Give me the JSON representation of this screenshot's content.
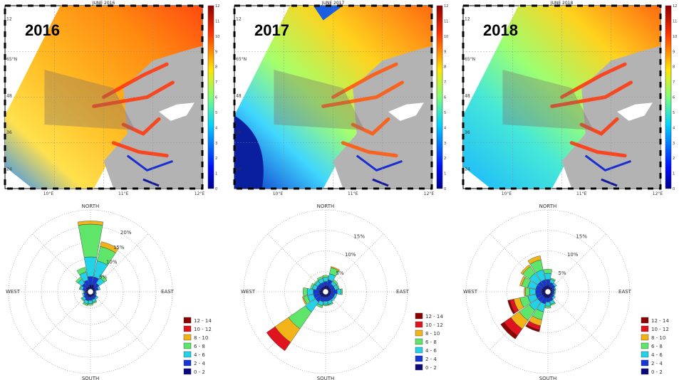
{
  "figure": {
    "maps": [
      {
        "title": "JUNE 2016",
        "year": "2016",
        "lon_ticks": [
          "10°E",
          "11°E",
          "12°E"
        ],
        "cbar_ticks": [
          "0",
          "1",
          "2",
          "3",
          "4",
          "5",
          "6",
          "7",
          "8",
          "9",
          "10",
          "11",
          "12"
        ]
      },
      {
        "title": "JUNE 2017",
        "year": "2017",
        "lon_ticks": [
          "10°E",
          "11°E",
          "12°E"
        ],
        "cbar_ticks": [
          "0",
          "1",
          "2",
          "3",
          "4",
          "5",
          "6",
          "7",
          "8",
          "9",
          "10",
          "11",
          "12"
        ]
      },
      {
        "title": "JUNE 2018",
        "year": "2018",
        "lon_ticks": [
          "10°E",
          "11°E",
          "12°E"
        ],
        "cbar_ticks": [
          "0",
          "1",
          "2",
          "3",
          "4",
          "5",
          "6",
          "7",
          "8",
          "9",
          "10",
          "11",
          "12"
        ]
      }
    ],
    "lat_labels": [
      "12",
      "65°N",
      "48",
      "36",
      "24"
    ],
    "colors": {
      "land": "#b3b3b3",
      "sea_deep": "#0a1f9e",
      "grid": "#999999"
    }
  },
  "chart_data": [
    {
      "type": "wind-rose",
      "title": "2016",
      "directions": [
        "N",
        "NNE",
        "NE",
        "ENE",
        "E",
        "ESE",
        "SE",
        "SSE",
        "S",
        "SSW",
        "SW",
        "WSW",
        "W",
        "WNW",
        "NW",
        "NNW"
      ],
      "speed_bins": [
        "0 - 2",
        "2 - 4",
        "4 - 6",
        "6 - 8",
        "8 - 10",
        "10 - 12",
        "12 - 14"
      ],
      "series": [
        {
          "direction": "N",
          "values": [
            1.5,
            2.5,
            6,
            10,
            1,
            0,
            0
          ]
        },
        {
          "direction": "NNE",
          "values": [
            1.5,
            2.5,
            5,
            4.5,
            1.5,
            0,
            0
          ]
        },
        {
          "direction": "NE",
          "values": [
            1,
            1.5,
            2,
            1,
            0,
            0,
            0
          ]
        },
        {
          "direction": "ENE",
          "values": [
            0.8,
            1,
            0.6,
            0,
            0,
            0,
            0
          ]
        },
        {
          "direction": "E",
          "values": [
            0.5,
            0.5,
            0,
            0,
            0,
            0,
            0
          ]
        },
        {
          "direction": "ESE",
          "values": [
            0.5,
            0.5,
            0.3,
            0,
            0,
            0,
            0
          ]
        },
        {
          "direction": "SE",
          "values": [
            0.8,
            0.8,
            0.6,
            0,
            0,
            0,
            0
          ]
        },
        {
          "direction": "SSE",
          "values": [
            0.8,
            1,
            0.8,
            0.4,
            0,
            0,
            0
          ]
        },
        {
          "direction": "S",
          "values": [
            1,
            1,
            1,
            0.5,
            0,
            0,
            0
          ]
        },
        {
          "direction": "SSW",
          "values": [
            1,
            1.2,
            1,
            0.5,
            0,
            0,
            0
          ]
        },
        {
          "direction": "SW",
          "values": [
            0.8,
            1,
            0.8,
            0.3,
            0,
            0,
            0
          ]
        },
        {
          "direction": "WSW",
          "values": [
            0.6,
            0.8,
            0.5,
            0,
            0,
            0,
            0
          ]
        },
        {
          "direction": "W",
          "values": [
            0.6,
            0.6,
            0.4,
            0,
            0,
            0,
            0
          ]
        },
        {
          "direction": "WNW",
          "values": [
            0.8,
            1,
            0.8,
            0.3,
            0,
            0,
            0
          ]
        },
        {
          "direction": "NW",
          "values": [
            1,
            1.5,
            1.5,
            0.8,
            0,
            0,
            0
          ]
        },
        {
          "direction": "NNW",
          "values": [
            1,
            2,
            2.5,
            1.5,
            0,
            0,
            0
          ]
        }
      ],
      "rings": [
        5,
        10,
        15,
        20
      ],
      "ring_labels": [
        "5%",
        "10%",
        "15%",
        "20%"
      ],
      "rmax": 25,
      "compass": {
        "north": "NORTH",
        "south": "SOUTH",
        "east": "EAST",
        "west": "WEST"
      }
    },
    {
      "type": "wind-rose",
      "title": "2017",
      "directions": [
        "N",
        "NNE",
        "NE",
        "ENE",
        "E",
        "ESE",
        "SE",
        "SSE",
        "S",
        "SSW",
        "SW",
        "WSW",
        "W",
        "WNW",
        "NW",
        "NNW"
      ],
      "speed_bins": [
        "0 - 2",
        "2 - 4",
        "4 - 6",
        "6 - 8",
        "8 - 10",
        "10 - 12",
        "12 - 14"
      ],
      "series": [
        {
          "direction": "N",
          "values": [
            1,
            1,
            1,
            0.5,
            0,
            0,
            0
          ]
        },
        {
          "direction": "NNE",
          "values": [
            1,
            1.5,
            1.5,
            1.5,
            0.3,
            0,
            0
          ]
        },
        {
          "direction": "NE",
          "values": [
            0.8,
            1,
            0.8,
            0.5,
            0,
            0,
            0
          ]
        },
        {
          "direction": "ENE",
          "values": [
            0.8,
            1,
            0.8,
            0.3,
            0,
            0,
            0
          ]
        },
        {
          "direction": "E",
          "values": [
            0.8,
            1.5,
            1,
            0.3,
            0,
            0,
            0
          ]
        },
        {
          "direction": "ESE",
          "values": [
            0.8,
            1,
            0.5,
            0,
            0,
            0,
            0
          ]
        },
        {
          "direction": "SE",
          "values": [
            0.8,
            1,
            0.5,
            0,
            0,
            0,
            0
          ]
        },
        {
          "direction": "SSE",
          "values": [
            0.8,
            1,
            0.8,
            0.3,
            0,
            0,
            0
          ]
        },
        {
          "direction": "S",
          "values": [
            0.8,
            1,
            0.8,
            0.3,
            0,
            0,
            0
          ]
        },
        {
          "direction": "SSW",
          "values": [
            0.8,
            1.2,
            1,
            0.5,
            0,
            0,
            0
          ]
        },
        {
          "direction": "SW",
          "values": [
            1,
            1.5,
            3,
            5,
            4,
            2.5,
            0
          ]
        },
        {
          "direction": "WSW",
          "values": [
            1,
            1.5,
            1.5,
            1,
            0.3,
            0,
            0
          ]
        },
        {
          "direction": "W",
          "values": [
            1,
            1.5,
            1.5,
            1,
            0,
            0,
            0
          ]
        },
        {
          "direction": "WNW",
          "values": [
            0.8,
            1,
            1,
            0.5,
            0,
            0,
            0
          ]
        },
        {
          "direction": "NW",
          "values": [
            0.8,
            1,
            0.8,
            0.3,
            0,
            0,
            0
          ]
        },
        {
          "direction": "NNW",
          "values": [
            0.8,
            1,
            1,
            0.5,
            0,
            0,
            0
          ]
        }
      ],
      "rings": [
        5,
        10,
        15
      ],
      "ring_labels": [
        "5%",
        "10%",
        "15%"
      ],
      "rmax": 20,
      "compass": {
        "north": "NORTH",
        "south": "SOUTH",
        "east": "EAST",
        "west": "WEST"
      }
    },
    {
      "type": "wind-rose",
      "title": "2018",
      "directions": [
        "N",
        "NNE",
        "NE",
        "ENE",
        "E",
        "ESE",
        "SE",
        "SSE",
        "S",
        "SSW",
        "SW",
        "WSW",
        "W",
        "WNW",
        "NW",
        "NNW"
      ],
      "speed_bins": [
        "0 - 2",
        "2 - 4",
        "4 - 6",
        "6 - 8",
        "8 - 10",
        "10 - 12",
        "12 - 14"
      ],
      "series": [
        {
          "direction": "N",
          "values": [
            1,
            1.5,
            1.5,
            1,
            0,
            0,
            0
          ]
        },
        {
          "direction": "NNE",
          "values": [
            0.8,
            1,
            0.8,
            0.3,
            0,
            0,
            0
          ]
        },
        {
          "direction": "NE",
          "values": [
            0.8,
            0.8,
            0.5,
            0,
            0,
            0,
            0
          ]
        },
        {
          "direction": "ENE",
          "values": [
            0.6,
            0.6,
            0.3,
            0,
            0,
            0,
            0
          ]
        },
        {
          "direction": "E",
          "values": [
            0.5,
            0.5,
            0.3,
            0,
            0,
            0,
            0
          ]
        },
        {
          "direction": "ESE",
          "values": [
            0.5,
            0.5,
            0.3,
            0,
            0,
            0,
            0
          ]
        },
        {
          "direction": "SE",
          "values": [
            0.6,
            0.6,
            0.5,
            0,
            0,
            0,
            0
          ]
        },
        {
          "direction": "SSE",
          "values": [
            0.8,
            1,
            0.8,
            0.3,
            0,
            0,
            0
          ]
        },
        {
          "direction": "S",
          "values": [
            1,
            1,
            1,
            0.5,
            0,
            0,
            0
          ]
        },
        {
          "direction": "SSW",
          "values": [
            1,
            1.5,
            2,
            2,
            1.5,
            1,
            0.5
          ]
        },
        {
          "direction": "SW",
          "values": [
            1,
            1.5,
            2.5,
            3,
            2.5,
            2,
            1
          ]
        },
        {
          "direction": "WSW",
          "values": [
            1,
            1.5,
            2,
            2,
            1.5,
            1,
            0.5
          ]
        },
        {
          "direction": "W",
          "values": [
            1,
            1.5,
            1.5,
            1,
            0.3,
            0,
            0
          ]
        },
        {
          "direction": "WNW",
          "values": [
            1,
            1.5,
            2,
            1.5,
            0.5,
            0,
            0
          ]
        },
        {
          "direction": "NW",
          "values": [
            1,
            1.5,
            2.5,
            2,
            0.5,
            0,
            0
          ]
        },
        {
          "direction": "NNW",
          "values": [
            1,
            1.5,
            2.5,
            2.5,
            1,
            0,
            0
          ]
        }
      ],
      "rings": [
        5,
        10,
        15
      ],
      "ring_labels": [
        "5%",
        "10%",
        "15%"
      ],
      "rmax": 20,
      "compass": {
        "north": "NORTH",
        "south": "SOUTH",
        "east": "EAST",
        "west": "WEST"
      }
    }
  ],
  "legend": {
    "bins": [
      "12 - 14",
      "10 - 12",
      "8 - 10",
      "6 - 8",
      "4 - 6",
      "2 - 4",
      "0 - 2"
    ],
    "colors": [
      "#8b0000",
      "#e0141e",
      "#f2b318",
      "#5ee56a",
      "#22d2e6",
      "#1436d6",
      "#0a0a7a"
    ]
  }
}
